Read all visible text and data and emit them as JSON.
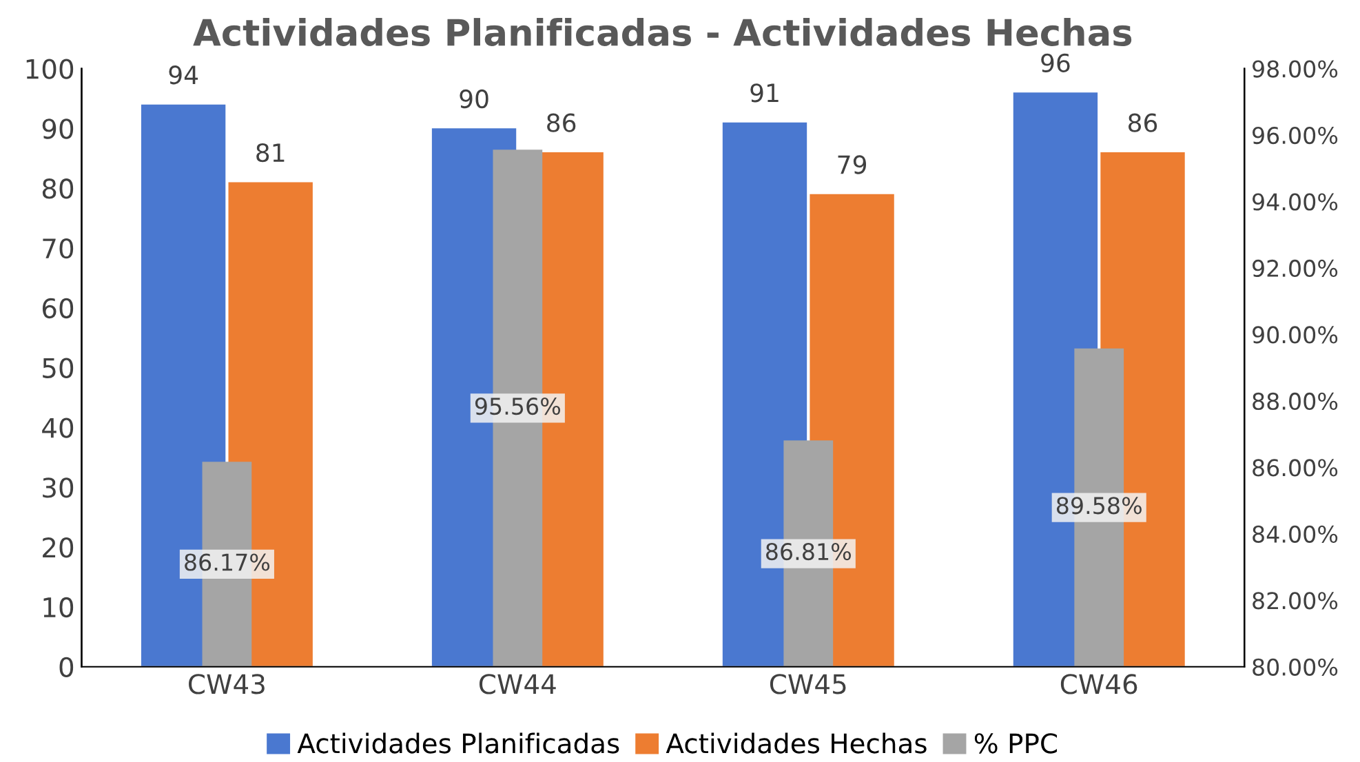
{
  "chart_data": {
    "type": "bar",
    "title": "Actividades Planificadas - Actividades Hechas",
    "categories": [
      "CW43",
      "CW44",
      "CW45",
      "CW46"
    ],
    "series": [
      {
        "name": "Actividades Planificadas",
        "color": "#4a78d0",
        "values": [
          94,
          90,
          91,
          96
        ],
        "value_labels": [
          "94",
          "90",
          "91",
          "96"
        ]
      },
      {
        "name": "Actividades Hechas",
        "color": "#ed7d31",
        "values": [
          81,
          86,
          79,
          86
        ],
        "value_labels": [
          "81",
          "86",
          "79",
          "86"
        ]
      },
      {
        "name": "% PPC",
        "color": "#a5a5a5",
        "axis": "y2",
        "values": [
          86.17,
          95.56,
          86.81,
          89.58
        ],
        "value_labels": [
          "86.17%",
          "95.56%",
          "86.81%",
          "89.58%"
        ]
      }
    ],
    "ylim": [
      0,
      100
    ],
    "yticks": [
      0,
      10,
      20,
      30,
      40,
      50,
      60,
      70,
      80,
      90,
      100
    ],
    "y2lim": [
      80,
      98
    ],
    "y2ticks": [
      {
        "value": 80,
        "label": "80.00%"
      },
      {
        "value": 82,
        "label": "82.00%"
      },
      {
        "value": 84,
        "label": "84.00%"
      },
      {
        "value": 86,
        "label": "86.00%"
      },
      {
        "value": 88,
        "label": "88.00%"
      },
      {
        "value": 90,
        "label": "90.00%"
      },
      {
        "value": 92,
        "label": "92.00%"
      },
      {
        "value": 94,
        "label": "94.00%"
      },
      {
        "value": 96,
        "label": "96.00%"
      },
      {
        "value": 98,
        "label": "98.00%"
      }
    ],
    "grid": false,
    "legend": "bottom"
  }
}
